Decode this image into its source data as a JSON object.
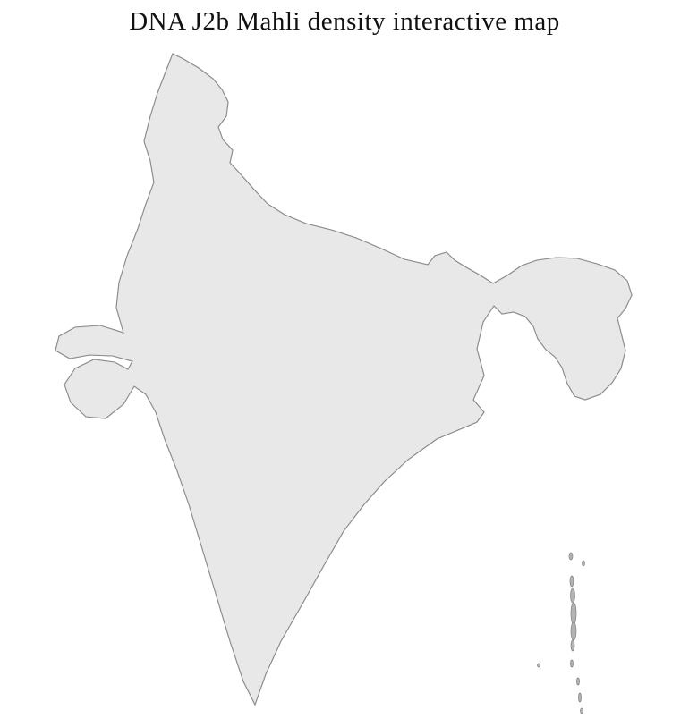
{
  "page": {
    "title": "DNA J2b Mahli density interactive map"
  },
  "map": {
    "base_fill": "#e8e8e8",
    "outline_stroke": "#8c8c8c",
    "district_mesh_stroke": "#9a9a9a",
    "state_line_stroke": "#8f8f8f",
    "city_color": "#6f6f6f",
    "island_fill": "#b3b3b3",
    "density_scale": [
      {
        "level": 0,
        "color": "#e8e8e8"
      },
      {
        "level": 1,
        "color": "#f9e1d3"
      },
      {
        "level": 2,
        "color": "#f0bd9e"
      },
      {
        "level": 3,
        "color": "#dd8352"
      },
      {
        "level": 4,
        "color": "#c05a2b"
      },
      {
        "level": 5,
        "color": "#9e3c10"
      },
      {
        "level": 6,
        "color": "#6f1c00"
      }
    ],
    "districts": [
      {
        "id": "p1",
        "level": 1
      },
      {
        "id": "p2",
        "level": 1
      },
      {
        "id": "p3",
        "level": 1
      },
      {
        "id": "p4",
        "level": 1
      },
      {
        "id": "p5",
        "level": 1
      },
      {
        "id": "p6",
        "level": 1
      },
      {
        "id": "p7",
        "level": 1
      },
      {
        "id": "p8",
        "level": 1
      },
      {
        "id": "p9",
        "level": 1
      },
      {
        "id": "p10",
        "level": 1
      },
      {
        "id": "p11",
        "level": 1
      },
      {
        "id": "b1",
        "level": 2
      },
      {
        "id": "b2",
        "level": 2
      },
      {
        "id": "b3",
        "level": 2
      },
      {
        "id": "b4",
        "level": 2
      },
      {
        "id": "a1",
        "level": 3
      },
      {
        "id": "j7",
        "level": 3
      },
      {
        "id": "j8",
        "level": 3
      },
      {
        "id": "w2",
        "level": 3
      },
      {
        "id": "c3",
        "level": 4
      },
      {
        "id": "c4",
        "level": 4
      },
      {
        "id": "c5",
        "level": 4
      },
      {
        "id": "c6",
        "level": 4
      },
      {
        "id": "c7",
        "level": 4
      },
      {
        "id": "j4",
        "level": 4
      },
      {
        "id": "j5",
        "level": 4
      },
      {
        "id": "j6",
        "level": 4
      },
      {
        "id": "w1",
        "level": 4
      },
      {
        "id": "c2",
        "level": 5
      },
      {
        "id": "j1",
        "level": 5
      },
      {
        "id": "j2",
        "level": 5
      },
      {
        "id": "j3",
        "level": 5
      },
      {
        "id": "c1",
        "level": 6
      },
      {
        "id": "k1",
        "level": "city"
      }
    ]
  }
}
